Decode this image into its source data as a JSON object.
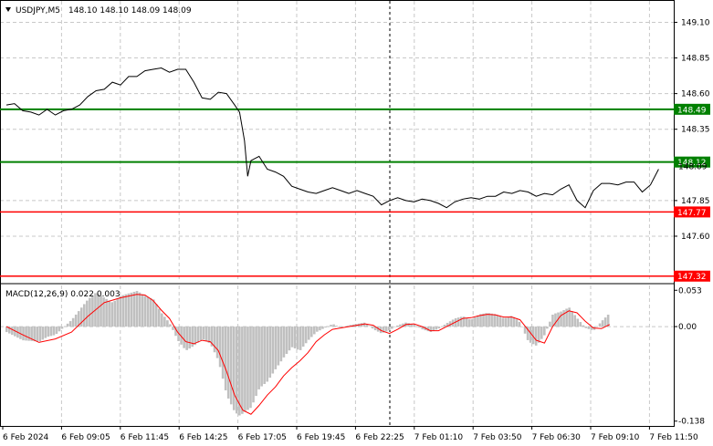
{
  "header": {
    "symbol": "USDJPY,M5",
    "ohlc": "148.10 148.10 148.09 148.09"
  },
  "macd_label": "MACD(12,26,9) 0.022 0.003",
  "chart_data": [
    {
      "type": "line",
      "panel": "price",
      "ylim": [
        147.28,
        149.25
      ],
      "y_ticks": [
        "149.10",
        "148.85",
        "148.60",
        "148.35",
        "147.85",
        "147.60"
      ],
      "x_ticks": [
        "6 Feb 2024",
        "6 Feb 09:05",
        "6 Feb 11:45",
        "6 Feb 14:25",
        "6 Feb 17:05",
        "6 Feb 19:45",
        "6 Feb 22:25",
        "7 Feb 01:10",
        "7 Feb 03:50",
        "7 Feb 06:30",
        "7 Feb 09:10",
        "7 Feb 11:50"
      ],
      "current_price": "148.09",
      "levels": [
        {
          "value": 148.49,
          "label": "148.49",
          "color": "#008000"
        },
        {
          "value": 148.12,
          "label": "148.12",
          "color": "#008000"
        },
        {
          "value": 147.77,
          "label": "147.77",
          "color": "#ff0000"
        },
        {
          "value": 147.32,
          "label": "147.32",
          "color": "#ff0000"
        }
      ],
      "series": [
        {
          "values": [
            [
              0,
              148.52
            ],
            [
              0.5,
              148.53
            ],
            [
              1,
              148.48
            ],
            [
              1.5,
              148.47
            ],
            [
              2,
              148.45
            ],
            [
              2.5,
              148.49
            ],
            [
              3,
              148.45
            ],
            [
              3.5,
              148.48
            ],
            [
              4,
              148.49
            ],
            [
              4.5,
              148.52
            ],
            [
              5,
              148.58
            ],
            [
              5.5,
              148.62
            ],
            [
              6,
              148.63
            ],
            [
              6.5,
              148.68
            ],
            [
              7,
              148.66
            ],
            [
              7.5,
              148.72
            ],
            [
              8,
              148.72
            ],
            [
              8.5,
              148.76
            ],
            [
              9,
              148.77
            ],
            [
              9.5,
              148.78
            ],
            [
              10,
              148.75
            ],
            [
              10.5,
              148.77
            ],
            [
              11,
              148.77
            ],
            [
              11.5,
              148.68
            ],
            [
              12,
              148.57
            ],
            [
              12.5,
              148.56
            ],
            [
              13,
              148.61
            ],
            [
              13.5,
              148.6
            ],
            [
              14,
              148.52
            ],
            [
              14.3,
              148.47
            ],
            [
              14.6,
              148.27
            ],
            [
              14.8,
              148.02
            ],
            [
              15,
              148.13
            ],
            [
              15.5,
              148.16
            ],
            [
              16,
              148.07
            ],
            [
              16.5,
              148.05
            ],
            [
              17,
              148.02
            ],
            [
              17.5,
              147.95
            ],
            [
              18,
              147.93
            ],
            [
              18.5,
              147.91
            ],
            [
              19,
              147.9
            ],
            [
              19.5,
              147.92
            ],
            [
              20,
              147.94
            ],
            [
              20.5,
              147.92
            ],
            [
              21,
              147.9
            ],
            [
              21.5,
              147.92
            ],
            [
              22,
              147.9
            ],
            [
              22.5,
              147.88
            ],
            [
              23,
              147.82
            ],
            [
              23.5,
              147.85
            ],
            [
              24,
              147.87
            ],
            [
              24.5,
              147.85
            ],
            [
              25,
              147.84
            ],
            [
              25.5,
              147.86
            ],
            [
              26,
              147.85
            ],
            [
              26.5,
              147.83
            ],
            [
              27,
              147.8
            ],
            [
              27.5,
              147.84
            ],
            [
              28,
              147.86
            ],
            [
              28.5,
              147.87
            ],
            [
              29,
              147.86
            ],
            [
              29.5,
              147.88
            ],
            [
              30,
              147.88
            ],
            [
              30.5,
              147.91
            ],
            [
              31,
              147.9
            ],
            [
              31.5,
              147.92
            ],
            [
              32,
              147.91
            ],
            [
              32.5,
              147.88
            ],
            [
              33,
              147.9
            ],
            [
              33.5,
              147.89
            ],
            [
              34,
              147.93
            ],
            [
              34.5,
              147.96
            ],
            [
              35,
              147.85
            ],
            [
              35.5,
              147.8
            ],
            [
              36,
              147.92
            ],
            [
              36.5,
              147.97
            ],
            [
              37,
              147.97
            ],
            [
              37.5,
              147.96
            ],
            [
              38,
              147.98
            ],
            [
              38.5,
              147.98
            ],
            [
              39,
              147.91
            ],
            [
              39.5,
              147.96
            ],
            [
              40,
              148.07
            ]
          ]
        },
        {
          "values": [
            [
              0,
              148.52
            ],
            [
              40,
              148.09
            ]
          ]
        }
      ]
    },
    {
      "type": "bar",
      "panel": "macd",
      "name": "MACD",
      "ylim": [
        -0.145,
        0.06
      ],
      "y_ticks": [
        "0.053",
        "0.00",
        "-0.138"
      ],
      "series": [
        {
          "name": "MACD",
          "values": [
            [
              0,
              -0.008
            ],
            [
              1,
              -0.02
            ],
            [
              2,
              -0.022
            ],
            [
              2.5,
              -0.015
            ],
            [
              3,
              -0.012
            ],
            [
              4,
              0.01
            ],
            [
              5,
              0.04
            ],
            [
              5.5,
              0.05
            ],
            [
              6,
              0.042
            ],
            [
              6.5,
              0.035
            ],
            [
              7,
              0.045
            ],
            [
              8,
              0.052
            ],
            [
              8.5,
              0.045
            ],
            [
              9,
              0.04
            ],
            [
              9.5,
              0.02
            ],
            [
              10,
              0.005
            ],
            [
              10.5,
              -0.02
            ],
            [
              11,
              -0.035
            ],
            [
              11.5,
              -0.028
            ],
            [
              12,
              -0.018
            ],
            [
              12.5,
              -0.025
            ],
            [
              13,
              -0.05
            ],
            [
              13.5,
              -0.1
            ],
            [
              14,
              -0.125
            ],
            [
              14.3,
              -0.13
            ],
            [
              15,
              -0.118
            ],
            [
              15.5,
              -0.09
            ],
            [
              16,
              -0.08
            ],
            [
              16.5,
              -0.062
            ],
            [
              17,
              -0.045
            ],
            [
              17.5,
              -0.03
            ],
            [
              18,
              -0.035
            ],
            [
              18.5,
              -0.02
            ],
            [
              19,
              -0.008
            ],
            [
              19.5,
              -0.002
            ],
            [
              20,
              0.004
            ],
            [
              20.5,
              -0.002
            ],
            [
              21,
              0.002
            ],
            [
              22,
              0.006
            ],
            [
              22.5,
              -0.004
            ],
            [
              23,
              -0.01
            ],
            [
              23.5,
              -0.005
            ],
            [
              24,
              0.002
            ],
            [
              24.5,
              0.006
            ],
            [
              25,
              0.003
            ],
            [
              25.5,
              -0.004
            ],
            [
              26,
              -0.008
            ],
            [
              26.5,
              -0.003
            ],
            [
              27,
              0.005
            ],
            [
              27.5,
              0.012
            ],
            [
              28,
              0.015
            ],
            [
              28.5,
              0.01
            ],
            [
              29,
              0.018
            ],
            [
              29.5,
              0.02
            ],
            [
              30,
              0.018
            ],
            [
              30.5,
              0.012
            ],
            [
              31,
              0.016
            ],
            [
              31.5,
              0.006
            ],
            [
              32,
              -0.022
            ],
            [
              32.5,
              -0.028
            ],
            [
              33,
              -0.012
            ],
            [
              33.5,
              0.018
            ],
            [
              34,
              0.022
            ],
            [
              34.5,
              0.028
            ],
            [
              35,
              0.012
            ],
            [
              35.5,
              -0.002
            ],
            [
              36,
              -0.006
            ],
            [
              36.5,
              0.008
            ],
            [
              37,
              0.02
            ]
          ]
        },
        {
          "name": "Signal",
          "values": [
            [
              0,
              0.0
            ],
            [
              1,
              -0.012
            ],
            [
              2,
              -0.023
            ],
            [
              3,
              -0.018
            ],
            [
              4,
              -0.008
            ],
            [
              5,
              0.015
            ],
            [
              6,
              0.035
            ],
            [
              7,
              0.042
            ],
            [
              8,
              0.047
            ],
            [
              8.5,
              0.046
            ],
            [
              9,
              0.038
            ],
            [
              9.5,
              0.024
            ],
            [
              10,
              0.012
            ],
            [
              10.5,
              -0.008
            ],
            [
              11,
              -0.022
            ],
            [
              11.5,
              -0.025
            ],
            [
              12,
              -0.02
            ],
            [
              12.5,
              -0.022
            ],
            [
              13,
              -0.035
            ],
            [
              13.5,
              -0.065
            ],
            [
              14,
              -0.1
            ],
            [
              14.5,
              -0.122
            ],
            [
              15,
              -0.128
            ],
            [
              15.5,
              -0.115
            ],
            [
              16,
              -0.1
            ],
            [
              16.5,
              -0.088
            ],
            [
              17,
              -0.072
            ],
            [
              17.5,
              -0.06
            ],
            [
              18,
              -0.05
            ],
            [
              18.5,
              -0.038
            ],
            [
              19,
              -0.022
            ],
            [
              19.5,
              -0.012
            ],
            [
              20,
              -0.004
            ],
            [
              20.5,
              -0.002
            ],
            [
              21,
              0.0
            ],
            [
              22,
              0.004
            ],
            [
              22.5,
              0.002
            ],
            [
              23,
              -0.006
            ],
            [
              23.5,
              -0.01
            ],
            [
              24,
              -0.004
            ],
            [
              24.5,
              0.003
            ],
            [
              25,
              0.004
            ],
            [
              25.5,
              0.0
            ],
            [
              26,
              -0.006
            ],
            [
              26.5,
              -0.006
            ],
            [
              27,
              0.0
            ],
            [
              27.5,
              0.006
            ],
            [
              28,
              0.012
            ],
            [
              28.5,
              0.013
            ],
            [
              29,
              0.016
            ],
            [
              29.5,
              0.018
            ],
            [
              30,
              0.017
            ],
            [
              30.5,
              0.014
            ],
            [
              31,
              0.014
            ],
            [
              31.5,
              0.01
            ],
            [
              32,
              -0.005
            ],
            [
              32.5,
              -0.02
            ],
            [
              33,
              -0.024
            ],
            [
              33.5,
              0.0
            ],
            [
              34,
              0.016
            ],
            [
              34.5,
              0.023
            ],
            [
              35,
              0.02
            ],
            [
              35.5,
              0.008
            ],
            [
              36,
              -0.002
            ],
            [
              36.5,
              -0.003
            ],
            [
              37,
              0.003
            ]
          ]
        }
      ]
    }
  ],
  "colors": {
    "price_line": "#000000",
    "macd_hist": "#c0c0c0",
    "signal_line": "#ff0000",
    "grid": "#c8c8c8",
    "green_level": "#008000",
    "red_level": "#ff0000",
    "vline": "#000000"
  }
}
